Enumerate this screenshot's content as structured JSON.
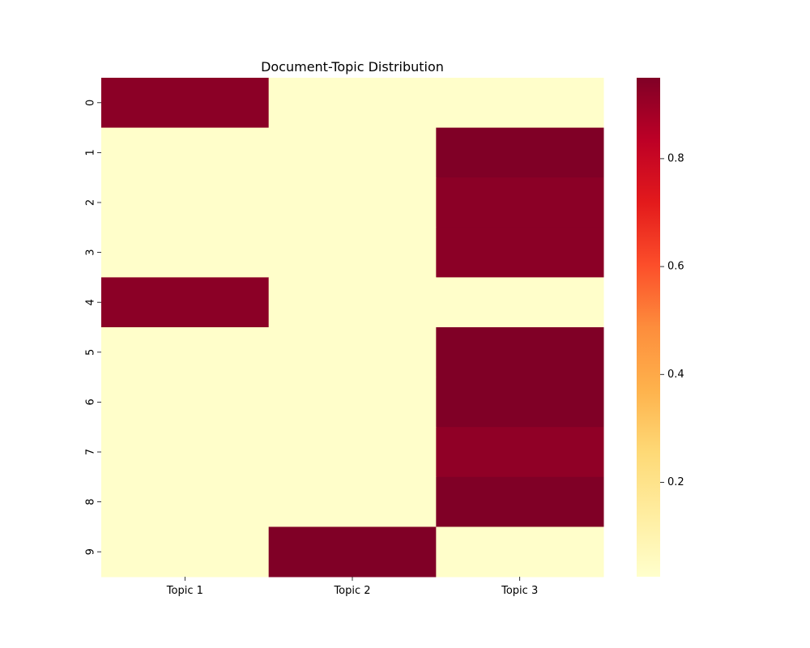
{
  "chart_data": {
    "type": "heatmap",
    "title": "Document-Topic Distribution",
    "xlabel": "",
    "ylabel": "",
    "x_categories": [
      "Topic 1",
      "Topic 2",
      "Topic 3"
    ],
    "y_categories": [
      "0",
      "1",
      "2",
      "3",
      "4",
      "5",
      "6",
      "7",
      "8",
      "9"
    ],
    "values": [
      [
        0.93,
        0.03,
        0.03
      ],
      [
        0.03,
        0.03,
        0.95
      ],
      [
        0.03,
        0.03,
        0.93
      ],
      [
        0.03,
        0.03,
        0.93
      ],
      [
        0.93,
        0.03,
        0.03
      ],
      [
        0.03,
        0.03,
        0.95
      ],
      [
        0.03,
        0.03,
        0.95
      ],
      [
        0.03,
        0.03,
        0.92
      ],
      [
        0.03,
        0.03,
        0.95
      ],
      [
        0.03,
        0.95,
        0.03
      ]
    ],
    "colormap": "YlOrRd",
    "colormap_stops": [
      "#ffffcc",
      "#ffeda0",
      "#fed976",
      "#feb24c",
      "#fd8d3c",
      "#fc4e2a",
      "#e31a1c",
      "#bd0026",
      "#800026"
    ],
    "colorbar": {
      "vmin": 0.025,
      "vmax": 0.95,
      "ticks": [
        0.2,
        0.4,
        0.6,
        0.8
      ],
      "tick_labels": [
        "0.2",
        "0.4",
        "0.6",
        "0.8"
      ]
    },
    "grid": false,
    "legend": "colorbar-right"
  }
}
